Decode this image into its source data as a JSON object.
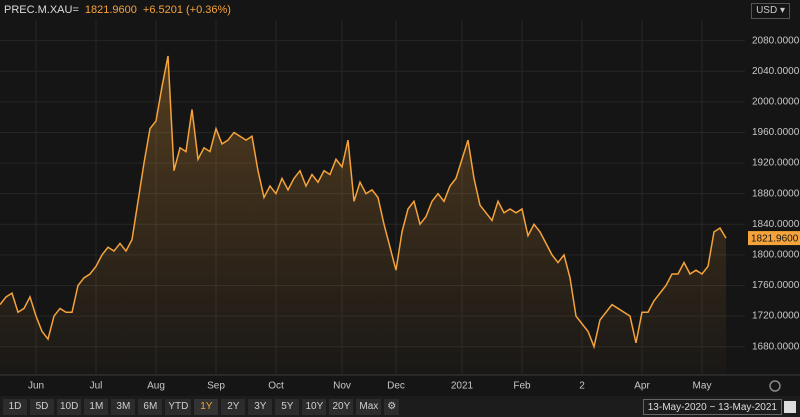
{
  "header": {
    "price": "1821.9600",
    "change": "+6.5201 (+0.36%)",
    "currency": "USD"
  },
  "chart_data": {
    "type": "area",
    "categories": [
      null,
      null,
      null,
      null,
      null,
      null,
      "Jun",
      null,
      null,
      null,
      null,
      null,
      null,
      null,
      null,
      null,
      "Jul",
      null,
      null,
      null,
      null,
      null,
      null,
      null,
      null,
      null,
      "Aug",
      null,
      null,
      null,
      null,
      null,
      null,
      null,
      null,
      null,
      "Sep",
      null,
      null,
      null,
      null,
      null,
      null,
      null,
      null,
      null,
      "Oct",
      null,
      null,
      null,
      null,
      null,
      null,
      null,
      null,
      null,
      null,
      "Nov",
      null,
      null,
      null,
      null,
      null,
      null,
      null,
      null,
      "Dec",
      null,
      null,
      null,
      null,
      null,
      null,
      null,
      null,
      null,
      null,
      "2021",
      null,
      null,
      null,
      null,
      null,
      null,
      null,
      null,
      null,
      "Feb",
      null,
      null,
      null,
      null,
      null,
      null,
      null,
      null,
      null,
      "2",
      null,
      null,
      null,
      null,
      null,
      null,
      null,
      null,
      null,
      "Apr",
      null,
      null,
      null,
      null,
      null,
      null,
      null,
      null,
      null,
      "May",
      null,
      null,
      null,
      null
    ],
    "series": [
      {
        "name": "PREC.M.XAU=",
        "color": "#f5a33a",
        "values": [
          1735,
          1745,
          1750,
          1725,
          1730,
          1745,
          1720,
          1700,
          1690,
          1720,
          1730,
          1725,
          1725,
          1760,
          1770,
          1775,
          1785,
          1800,
          1810,
          1805,
          1815,
          1805,
          1820,
          1870,
          1920,
          1965,
          1975,
          2020,
          2060,
          1910,
          1940,
          1935,
          1990,
          1925,
          1940,
          1935,
          1965,
          1945,
          1950,
          1960,
          1955,
          1950,
          1955,
          1910,
          1875,
          1890,
          1880,
          1900,
          1885,
          1900,
          1910,
          1890,
          1905,
          1895,
          1910,
          1905,
          1925,
          1915,
          1950,
          1870,
          1895,
          1880,
          1885,
          1875,
          1840,
          1810,
          1780,
          1830,
          1860,
          1870,
          1840,
          1850,
          1870,
          1880,
          1870,
          1890,
          1900,
          1925,
          1950,
          1900,
          1865,
          1855,
          1845,
          1870,
          1855,
          1860,
          1855,
          1860,
          1825,
          1840,
          1830,
          1815,
          1800,
          1790,
          1800,
          1770,
          1720,
          1710,
          1700,
          1680,
          1715,
          1725,
          1735,
          1730,
          1725,
          1720,
          1685,
          1725,
          1725,
          1740,
          1750,
          1760,
          1775,
          1775,
          1790,
          1775,
          1780,
          1775,
          1785,
          1830,
          1835,
          1821.96
        ]
      }
    ],
    "ylim": [
      1643,
      2107
    ],
    "yticks": [
      {
        "value": 1680,
        "label": "1680.0000"
      },
      {
        "value": 1720,
        "label": "1720.0000"
      },
      {
        "value": 1760,
        "label": "1760.0000"
      },
      {
        "value": 1800,
        "label": "1800.0000"
      },
      {
        "value": 1840,
        "label": "1840.0000"
      },
      {
        "value": 1880,
        "label": "1880.0000"
      },
      {
        "value": 1920,
        "label": "1920.0000"
      },
      {
        "value": 1960,
        "label": "1960.0000"
      },
      {
        "value": 2000,
        "label": "2000.0000"
      },
      {
        "value": 2040,
        "label": "2040.0000"
      },
      {
        "value": 2080,
        "label": "2080.0000"
      }
    ],
    "grid": true
  },
  "toolbar": {
    "periods": [
      "1D",
      "5D",
      "10D",
      "1M",
      "3M",
      "6M",
      "YTD",
      "1Y",
      "2Y",
      "3Y",
      "5Y",
      "10Y",
      "20Y",
      "Max"
    ],
    "selected": 7,
    "date_range": "13-May-2020 − 13-May-2021"
  }
}
